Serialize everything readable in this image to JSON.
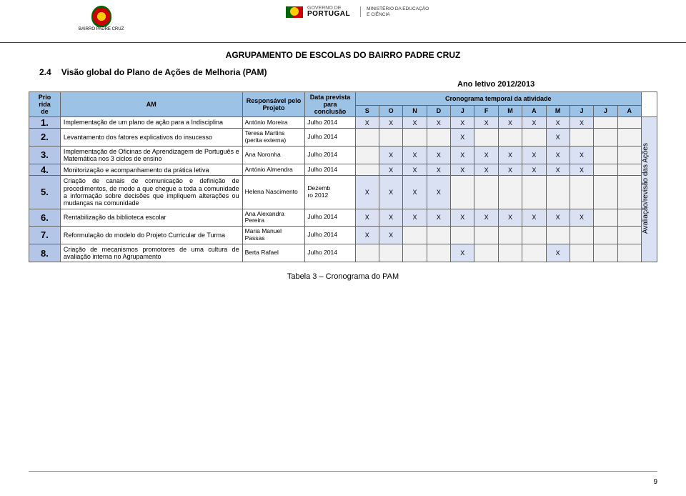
{
  "header": {
    "logo_left_line1": "BAIRRO PADRE CRUZ",
    "gov_line1": "GOVERNO DE",
    "gov_line2": "PORTUGAL",
    "ministerio_line1": "MINISTÉRIO DA EDUCAÇÃO",
    "ministerio_line2": "E CIÊNCIA"
  },
  "doc_title": "AGRUPAMENTO DE ESCOLAS DO BAIRRO PADRE CRUZ",
  "section_number": "2.4",
  "section_title": "Visão global do Plano de Ações de Melhoria (PAM)",
  "ano_letivo": "Ano letivo 2012/2013",
  "columns": {
    "prioridade": "Prio\nrida\nde",
    "am": "AM",
    "responsavel": "Responsável pelo Projeto",
    "data_prevista": "Data prevista para conclusão",
    "cronograma": "Cronograma temporal da atividade",
    "revisao": "Avaliação/revisão das Ações"
  },
  "months": [
    "S",
    "O",
    "N",
    "D",
    "J",
    "F",
    "M",
    "A",
    "M",
    "J",
    "J",
    "A"
  ],
  "rows": [
    {
      "n": "1.",
      "am": "Implementação de um plano de ação para a Indisciplina",
      "resp": "António Moreira",
      "data": "Julho 2014",
      "marks": [
        "X",
        "X",
        "X",
        "X",
        "X",
        "X",
        "X",
        "X",
        "X",
        "X",
        "",
        ""
      ]
    },
    {
      "n": "2.",
      "am": "Levantamento dos fatores explicativos do insucesso",
      "resp": "Teresa Martins (perita externa)",
      "data": "Julho 2014",
      "marks": [
        "",
        "",
        "",
        "",
        "X",
        "",
        "",
        "",
        "X",
        "",
        "",
        ""
      ]
    },
    {
      "n": "3.",
      "am": "Implementação de Oficinas de Aprendizagem de Português e Matemática nos 3 ciclos de ensino",
      "resp": "Ana Noronha",
      "data": "Julho 2014",
      "marks": [
        "",
        "X",
        "X",
        "X",
        "X",
        "X",
        "X",
        "X",
        "X",
        "X",
        "",
        ""
      ]
    },
    {
      "n": "4.",
      "am": "Monitorização e acompanhamento da prática letiva",
      "resp": "António Almendra",
      "data": "Julho 2014",
      "marks": [
        "",
        "X",
        "X",
        "X",
        "X",
        "X",
        "X",
        "X",
        "X",
        "X",
        "",
        ""
      ]
    },
    {
      "n": "5.",
      "am": "Criação de canais de comunicação e definição de procedimentos, de modo a que chegue a toda a comunidade a informação sobre decisões que impliquem alterações ou mudanças na comunidade",
      "resp": "Helena Nascimento",
      "data": "Dezemb\nro 2012",
      "marks": [
        "X",
        "X",
        "X",
        "X",
        "",
        "",
        "",
        "",
        "",
        "",
        "",
        ""
      ]
    },
    {
      "n": "6.",
      "am": "Rentabilização da biblioteca escolar",
      "resp": "Ana Alexandra Pereira",
      "data": "Julho 2014",
      "marks": [
        "X",
        "X",
        "X",
        "X",
        "X",
        "X",
        "X",
        "X",
        "X",
        "X",
        "",
        ""
      ]
    },
    {
      "n": "7.",
      "am": "Reformulação do modelo do Projeto Curricular de Turma",
      "resp": "Maria Manuel Passas",
      "data": "Julho 2014",
      "marks": [
        "X",
        "X",
        "",
        "",
        "",
        "",
        "",
        "",
        "",
        "",
        "",
        ""
      ]
    },
    {
      "n": "8.",
      "am": "Criação de mecanismos promotores de uma cultura de avaliação interna no Agrupamento",
      "resp": "Berta Rafael",
      "data": "Julho 2014",
      "marks": [
        "",
        "",
        "",
        "",
        "X",
        "",
        "",
        "",
        "X",
        "",
        "",
        ""
      ]
    }
  ],
  "caption": "Tabela 3 – Cronograma do PAM",
  "page_number": "9",
  "colors": {
    "header_bg": "#9cc2e5",
    "num_bg": "#b4c6e7",
    "mark_bg": "#d9e1f2",
    "rule": "#cc0000"
  }
}
